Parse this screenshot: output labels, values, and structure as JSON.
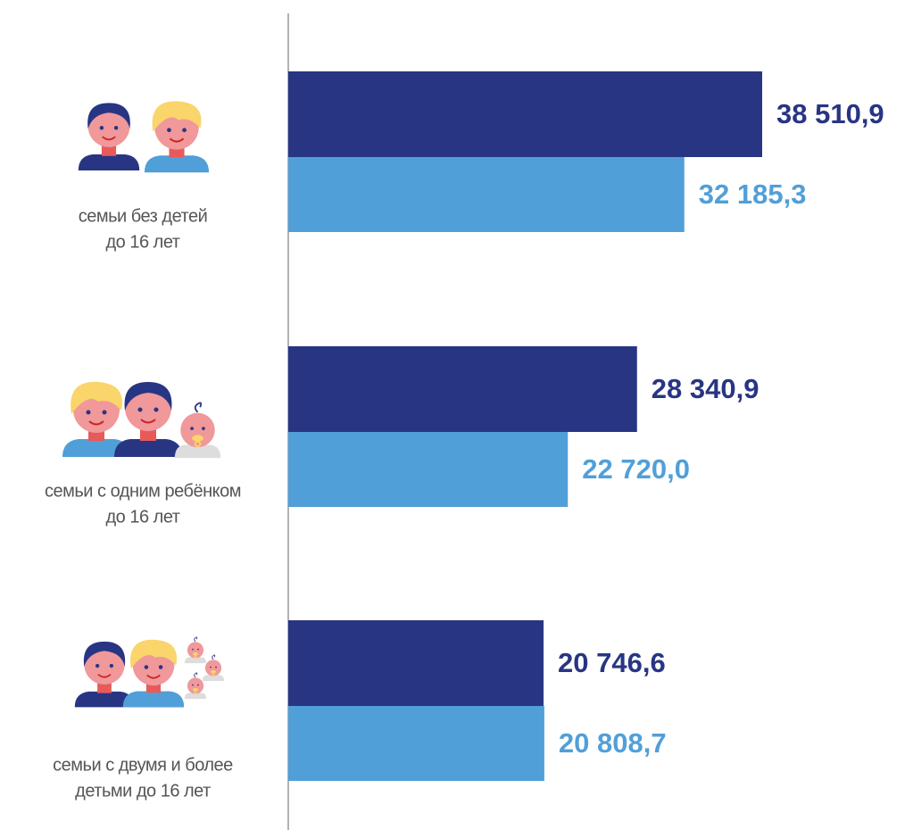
{
  "chart_data": {
    "type": "bar",
    "orientation": "horizontal",
    "categories": [
      [
        "семьи без детей",
        "до 16 лет"
      ],
      [
        "семьи с одним ребёнком",
        "до 16 лет"
      ],
      [
        "семьи с двумя и более",
        "детьми до 16 лет"
      ]
    ],
    "series": [
      {
        "color": "#283583",
        "values": [
          38510.9,
          28340.9,
          20746.6
        ],
        "value_labels": [
          "38 510,9",
          "28 340,9",
          "20 746,6"
        ]
      },
      {
        "color": "#519fd8",
        "values": [
          32185.3,
          22720.0,
          20808.7
        ],
        "value_labels": [
          "32 185,3",
          "22 720,0",
          "20 808,7"
        ]
      }
    ]
  }
}
